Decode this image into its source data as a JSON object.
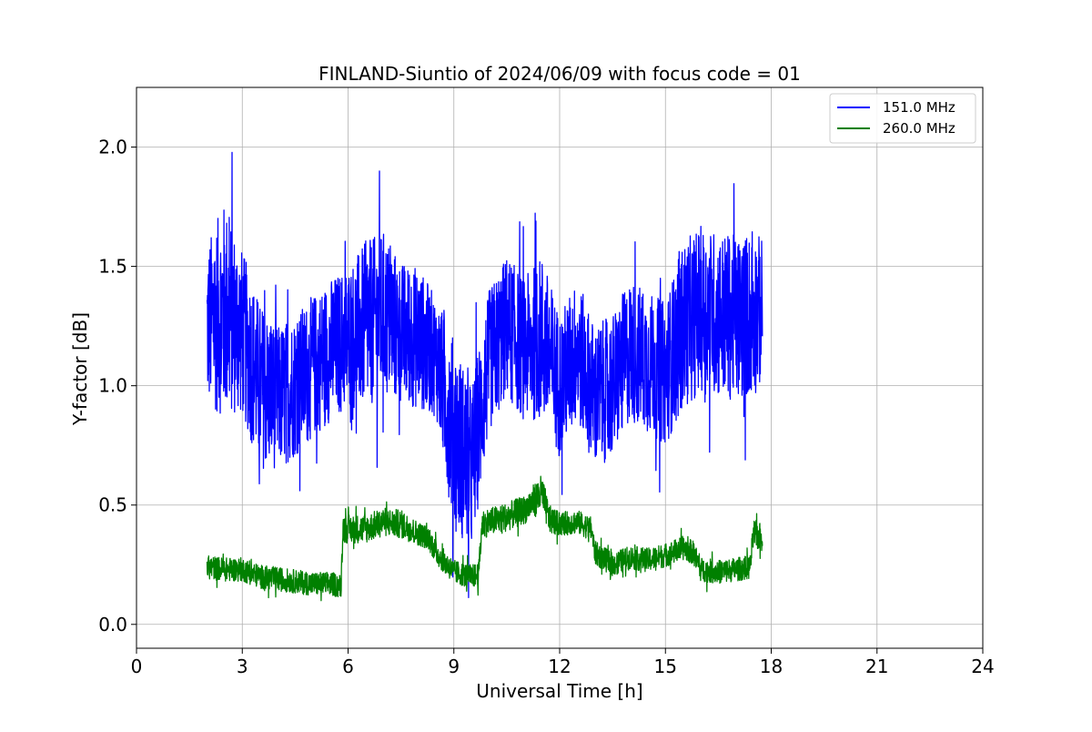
{
  "chart_data": {
    "type": "line",
    "title": "FINLAND-Siuntio of 2024/06/09 with focus code = 01",
    "xlabel": "Universal Time [h]",
    "ylabel": "Y-factor [dB]",
    "xlim": [
      0,
      24
    ],
    "ylim": [
      -0.1,
      2.25
    ],
    "xticks": [
      0,
      3,
      6,
      9,
      12,
      15,
      18,
      21,
      24
    ],
    "xtick_labels": [
      "0",
      "3",
      "6",
      "9",
      "12",
      "15",
      "18",
      "21",
      "24"
    ],
    "yticks": [
      0.0,
      0.5,
      1.0,
      1.5,
      2.0
    ],
    "ytick_labels": [
      "0.0",
      "0.5",
      "1.0",
      "1.5",
      "2.0"
    ],
    "grid": true,
    "legend_position": "upper right",
    "series": [
      {
        "name": "151.0 MHz",
        "color": "#0000ff",
        "x": [
          2.0,
          2.5,
          3.0,
          3.5,
          4.0,
          4.5,
          5.0,
          5.5,
          6.0,
          6.5,
          7.0,
          7.5,
          8.0,
          8.5,
          9.0,
          9.5,
          10.0,
          10.5,
          11.0,
          11.5,
          12.0,
          12.5,
          13.0,
          13.5,
          14.0,
          14.5,
          15.0,
          15.5,
          16.0,
          16.5,
          17.0,
          17.5,
          17.75
        ],
        "y": [
          1.25,
          1.32,
          1.22,
          1.0,
          0.95,
          1.0,
          1.08,
          1.15,
          1.2,
          1.25,
          1.3,
          1.22,
          1.2,
          1.12,
          0.8,
          0.65,
          1.1,
          1.25,
          1.15,
          1.2,
          1.0,
          1.15,
          0.95,
          1.0,
          1.15,
          1.1,
          1.05,
          1.25,
          1.32,
          1.3,
          1.28,
          1.3,
          1.32
        ],
        "amplitude": [
          0.35,
          0.45,
          0.35,
          0.35,
          0.3,
          0.3,
          0.3,
          0.3,
          0.3,
          0.35,
          0.35,
          0.3,
          0.3,
          0.25,
          0.4,
          0.35,
          0.3,
          0.3,
          0.3,
          0.35,
          0.3,
          0.3,
          0.3,
          0.3,
          0.3,
          0.3,
          0.3,
          0.35,
          0.35,
          0.35,
          0.35,
          0.35,
          0.3
        ]
      },
      {
        "name": "260.0 MHz",
        "color": "#008000",
        "x": [
          2.0,
          2.5,
          3.0,
          3.5,
          4.0,
          4.5,
          5.0,
          5.5,
          5.8,
          5.85,
          6.5,
          7.0,
          7.5,
          8.0,
          8.3,
          8.5,
          9.0,
          9.5,
          9.7,
          9.8,
          10.5,
          11.0,
          11.5,
          11.7,
          12.0,
          12.5,
          12.9,
          13.0,
          13.5,
          14.0,
          14.5,
          15.0,
          15.5,
          15.8,
          16.0,
          16.5,
          17.0,
          17.4,
          17.5,
          17.75
        ],
        "y": [
          0.24,
          0.23,
          0.23,
          0.2,
          0.19,
          0.18,
          0.17,
          0.17,
          0.16,
          0.4,
          0.4,
          0.43,
          0.42,
          0.38,
          0.36,
          0.3,
          0.22,
          0.2,
          0.21,
          0.42,
          0.45,
          0.48,
          0.55,
          0.44,
          0.42,
          0.43,
          0.4,
          0.3,
          0.25,
          0.28,
          0.27,
          0.29,
          0.32,
          0.3,
          0.23,
          0.22,
          0.23,
          0.24,
          0.38,
          0.36
        ],
        "amplitude": [
          0.05,
          0.05,
          0.05,
          0.05,
          0.05,
          0.05,
          0.05,
          0.05,
          0.05,
          0.06,
          0.06,
          0.06,
          0.06,
          0.05,
          0.05,
          0.05,
          0.05,
          0.05,
          0.05,
          0.06,
          0.06,
          0.06,
          0.08,
          0.06,
          0.05,
          0.05,
          0.05,
          0.05,
          0.05,
          0.05,
          0.05,
          0.05,
          0.05,
          0.05,
          0.05,
          0.05,
          0.05,
          0.05,
          0.06,
          0.06
        ]
      }
    ]
  }
}
